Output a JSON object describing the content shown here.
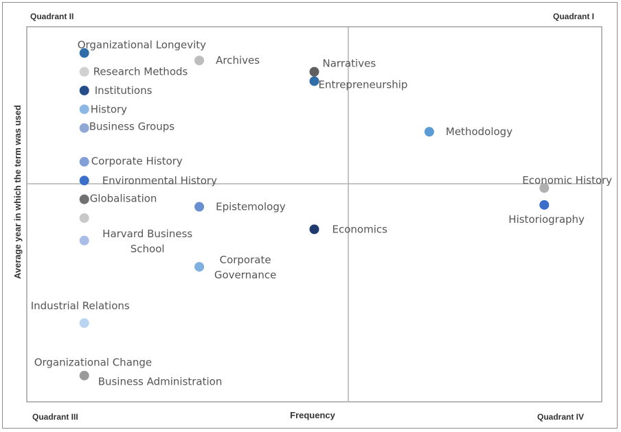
{
  "chart_data": {
    "type": "scatter",
    "title": "",
    "xlabel": "Frequency",
    "ylabel": "Average year in which the term was used",
    "xlim": [
      0,
      100
    ],
    "ylim": [
      0,
      100
    ],
    "grid": false,
    "quadrant_labels": {
      "q1": "Quadrant I",
      "q2": "Quadrant II",
      "q3": "Quadrant III",
      "q4": "Quadrant IV"
    },
    "points": [
      {
        "label": "Organizational Longevity",
        "x": 10,
        "y": 93,
        "color": "#2f6ea8"
      },
      {
        "label": "Archives",
        "x": 30,
        "y": 91,
        "color": "#bdbdbd"
      },
      {
        "label": "Research Methods",
        "x": 10,
        "y": 88,
        "color": "#d0d0d0"
      },
      {
        "label": "Narratives",
        "x": 50,
        "y": 88,
        "color": "#606060"
      },
      {
        "label": "Entrepreneurship",
        "x": 50,
        "y": 85.5,
        "color": "#2f6ea8"
      },
      {
        "label": "Institutions",
        "x": 10,
        "y": 83,
        "color": "#254d8a"
      },
      {
        "label": "History",
        "x": 10,
        "y": 78,
        "color": "#8cb8e6"
      },
      {
        "label": "Business Groups",
        "x": 10,
        "y": 73,
        "color": "#8fa8d8"
      },
      {
        "label": "Methodology",
        "x": 70,
        "y": 72,
        "color": "#5b9bd5"
      },
      {
        "label": "Corporate History",
        "x": 10,
        "y": 64,
        "color": "#7f9fd6"
      },
      {
        "label": "Environmental History",
        "x": 10,
        "y": 59,
        "color": "#3b6fc9"
      },
      {
        "label": "Economic History",
        "x": 90,
        "y": 57,
        "color": "#b0b0b0"
      },
      {
        "label": "Historiography",
        "x": 90,
        "y": 52.5,
        "color": "#3b6fc9"
      },
      {
        "label": "Globalisation",
        "x": 10,
        "y": 54,
        "color": "#707070"
      },
      {
        "label": "Epistemology",
        "x": 30,
        "y": 52,
        "color": "#6a8fd0"
      },
      {
        "label": "",
        "x": 10,
        "y": 49,
        "color": "#c8c8c8"
      },
      {
        "label": "Economics",
        "x": 50,
        "y": 46,
        "color": "#1f3a6e"
      },
      {
        "label": "Harvard Business School",
        "x": 10,
        "y": 43,
        "color": "#a9bde6"
      },
      {
        "label": "Corporate Governance",
        "x": 30,
        "y": 36,
        "color": "#7fb0e0"
      },
      {
        "label": "Industrial Relations",
        "x": 10,
        "y": 21,
        "color": "#b8d4f0"
      },
      {
        "label": "Organizational Change",
        "x": 10,
        "y": 7,
        "color": "#9a9a9a"
      },
      {
        "label": "Business Administration",
        "x": 10,
        "y": 7,
        "color": "#9a9a9a"
      }
    ]
  }
}
